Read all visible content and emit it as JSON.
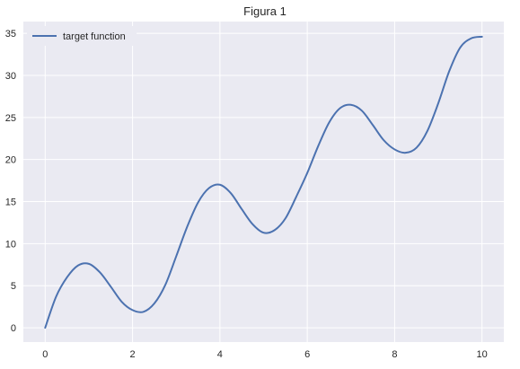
{
  "chart_data": {
    "type": "line",
    "title": "Figura 1",
    "xlabel": "",
    "ylabel": "",
    "xlim": [
      -0.5,
      10.5
    ],
    "ylim": [
      -1.7,
      36.4
    ],
    "xticks": [
      0,
      2,
      4,
      6,
      8,
      10
    ],
    "yticks": [
      0,
      5,
      10,
      15,
      20,
      25,
      30,
      35
    ],
    "grid": true,
    "legend_position": "top-left",
    "series": [
      {
        "name": "target function",
        "color": "#4c72b0",
        "x": [
          0,
          0.25,
          0.5,
          0.75,
          1.0,
          1.25,
          1.5,
          1.75,
          2.0,
          2.25,
          2.5,
          2.75,
          3.0,
          3.25,
          3.5,
          3.75,
          4.0,
          4.25,
          4.5,
          4.75,
          5.0,
          5.25,
          5.5,
          5.75,
          6.0,
          6.25,
          6.5,
          6.75,
          7.0,
          7.25,
          7.5,
          7.75,
          8.0,
          8.25,
          8.5,
          8.75,
          9.0,
          9.25,
          9.5,
          9.75,
          10.0
        ],
        "y": [
          0.0,
          3.7,
          6.0,
          7.4,
          7.6,
          6.6,
          4.9,
          3.1,
          2.1,
          1.9,
          2.9,
          5.1,
          8.5,
          12.0,
          14.9,
          16.6,
          17.0,
          16.0,
          14.1,
          12.3,
          11.3,
          11.6,
          13.0,
          15.6,
          18.4,
          21.6,
          24.4,
          26.1,
          26.5,
          25.8,
          24.1,
          22.3,
          21.2,
          20.8,
          21.4,
          23.4,
          26.7,
          30.5,
          33.3,
          34.4,
          34.6
        ]
      }
    ]
  }
}
